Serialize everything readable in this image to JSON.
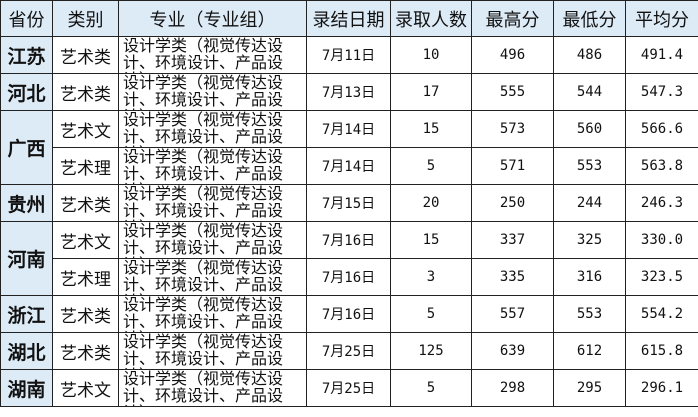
{
  "headers": [
    "省份",
    "类别",
    "专业（专业组）",
    "录结日期",
    "录取人数",
    "最高分",
    "最低分",
    "平均分"
  ],
  "rows": [
    {
      "province": "江苏",
      "category": "艺术类",
      "major": "设计学类（视觉传达设计、环境设计、产品设计）",
      "date": "7月11日",
      "admitted": "10",
      "max": "496",
      "min": "486",
      "avg": "491.4"
    },
    {
      "province": "河北",
      "category": "艺术类",
      "major": "设计学类（视觉传达设计、环境设计、产品设计）",
      "date": "7月13日",
      "admitted": "17",
      "max": "555",
      "min": "544",
      "avg": "547.3"
    },
    {
      "province": "广西",
      "category": "艺术文",
      "major": "设计学类（视觉传达设计、环境设计、产品设计）",
      "date": "7月14日",
      "admitted": "15",
      "max": "573",
      "min": "560",
      "avg": "566.6"
    },
    {
      "province": "",
      "category": "艺术理",
      "major": "设计学类（视觉传达设计、环境设计、产品设计）",
      "date": "7月14日",
      "admitted": "5",
      "max": "571",
      "min": "553",
      "avg": "563.8"
    },
    {
      "province": "贵州",
      "category": "艺术类",
      "major": "设计学类（视觉传达设计、环境设计、产品设计）",
      "date": "7月15日",
      "admitted": "20",
      "max": "250",
      "min": "244",
      "avg": "246.3"
    },
    {
      "province": "河南",
      "category": "艺术文",
      "major": "设计学类（视觉传达设计、环境设计、产品设计）",
      "date": "7月16日",
      "admitted": "15",
      "max": "337",
      "min": "325",
      "avg": "330.0"
    },
    {
      "province": "",
      "category": "艺术理",
      "major": "设计学类（视觉传达设计、环境设计、产品设计）",
      "date": "7月16日",
      "admitted": "3",
      "max": "335",
      "min": "316",
      "avg": "323.5"
    },
    {
      "province": "浙江",
      "category": "艺术类",
      "major": "设计学类（视觉传达设计、环境设计、产品设计）",
      "date": "7月16日",
      "admitted": "5",
      "max": "557",
      "min": "553",
      "avg": "554.2"
    },
    {
      "province": "湖北",
      "category": "艺术类",
      "major": "设计学类（视觉传达设计、环境设计、产品设计）",
      "date": "7月25日",
      "admitted": "125",
      "max": "639",
      "min": "612",
      "avg": "615.8"
    },
    {
      "province": "湖南",
      "category": "艺术文",
      "major": "设计学类（视觉传达设计、环境设计、产品设计）",
      "date": "7月25日",
      "admitted": "5",
      "max": "298",
      "min": "295",
      "avg": "296.1"
    }
  ],
  "colors": {
    "header_bg": "#DDEBF7",
    "province_bg": "#DDEBF7",
    "border": "#222222"
  }
}
